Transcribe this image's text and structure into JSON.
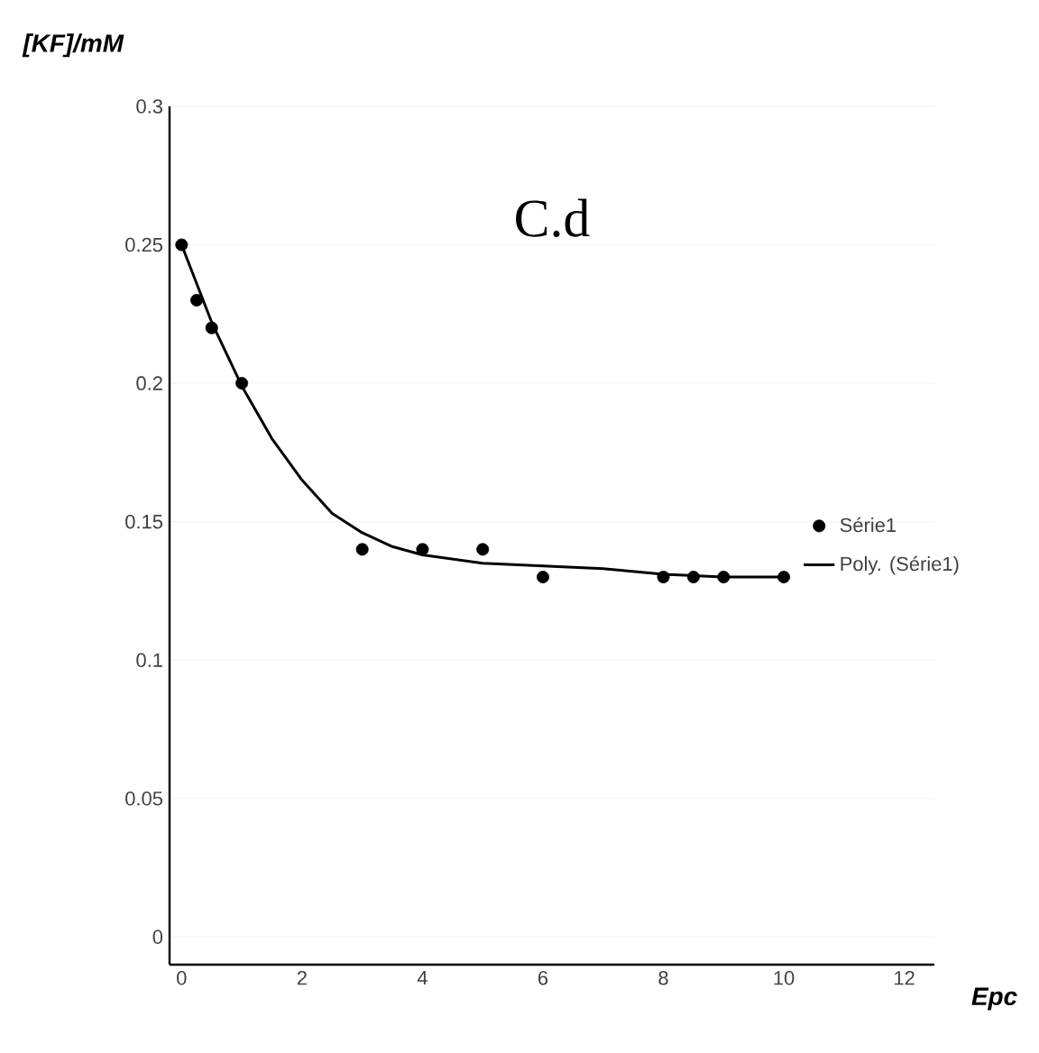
{
  "chart_data": {
    "type": "scatter",
    "title": "C.d",
    "xlabel": "Epc",
    "ylabel": "[KF]/mM",
    "series": [
      {
        "name": "Série1",
        "color": "#000000",
        "marker": "circle",
        "x": [
          0,
          0.25,
          0.5,
          1,
          3,
          4,
          5,
          6,
          8,
          8.5,
          9,
          10
        ],
        "values": [
          0.25,
          0.23,
          0.22,
          0.2,
          0.14,
          0.14,
          0.14,
          0.13,
          0.13,
          0.13,
          0.13,
          0.13
        ]
      },
      {
        "name": "Poly. (Série1)",
        "type": "line",
        "color": "#000000",
        "line_style": "solid",
        "x": [
          0,
          0.5,
          1,
          1.5,
          2,
          2.5,
          3,
          3.5,
          4,
          5,
          6,
          7,
          8,
          9,
          10
        ],
        "values": [
          0.25,
          0.222,
          0.199,
          0.18,
          0.165,
          0.153,
          0.146,
          0.141,
          0.138,
          0.135,
          0.134,
          0.133,
          0.131,
          0.13,
          0.13
        ]
      }
    ],
    "xlim": [
      -0.2,
      12.5
    ],
    "ylim": [
      -0.01,
      0.3
    ],
    "xticks": [
      0,
      2,
      4,
      6,
      8,
      10,
      12
    ],
    "yticks": [
      0,
      0.05,
      0.1,
      0.15,
      0.2,
      0.25,
      0.3
    ],
    "grid": "y",
    "legend": "right"
  }
}
